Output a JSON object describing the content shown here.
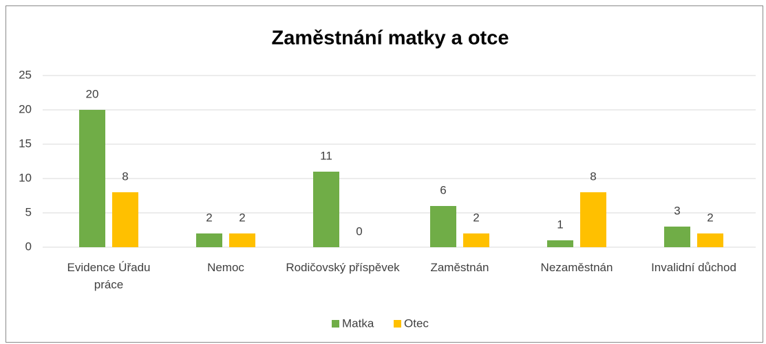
{
  "chart_data": {
    "type": "bar",
    "title": "Zaměstnání matky a otce",
    "categories": [
      "Evidence Úřadu práce",
      "Nemoc",
      "Rodičovský příspěvek",
      "Zaměstnán",
      "Nezaměstnán",
      "Invalidní důchod"
    ],
    "series": [
      {
        "name": "Matka",
        "color": "#70ad47",
        "values": [
          20,
          2,
          11,
          6,
          1,
          3
        ]
      },
      {
        "name": "Otec",
        "color": "#ffc000",
        "values": [
          8,
          2,
          0,
          2,
          8,
          2
        ]
      }
    ],
    "ylim": [
      0,
      25
    ],
    "yticks": [
      0,
      5,
      10,
      15,
      20,
      25
    ],
    "grid": true,
    "legend": "bottom"
  }
}
